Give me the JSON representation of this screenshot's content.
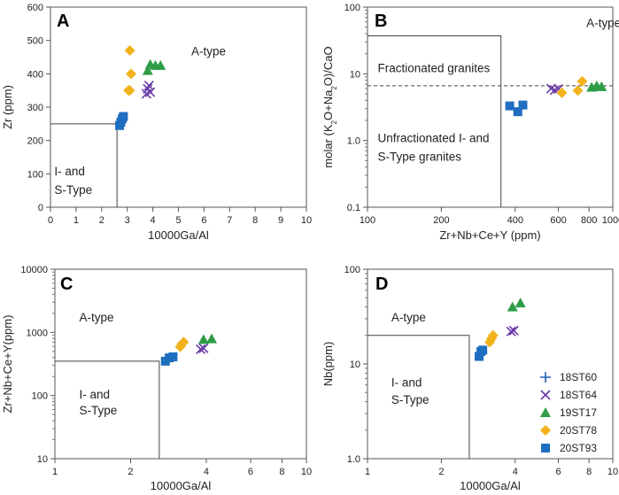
{
  "series_styles": [
    {
      "name": "18ST60",
      "marker": "plus",
      "color": "#1f5fb0"
    },
    {
      "name": "18ST64",
      "marker": "x",
      "color": "#6a3aa6"
    },
    {
      "name": "19ST17",
      "marker": "triangle",
      "color": "#2e9d46"
    },
    {
      "name": "20ST78",
      "marker": "diamond",
      "color": "#f2b21c"
    },
    {
      "name": "20ST93",
      "marker": "square",
      "color": "#1f6ec0"
    }
  ],
  "chart_data": [
    {
      "type": "scatter",
      "panel": "A",
      "xlabel": "10000Ga/Al",
      "ylabel": "Zr (ppm)",
      "xscale": "linear",
      "yscale": "linear",
      "xlim": [
        0,
        10
      ],
      "ylim": [
        0,
        600
      ],
      "xticks": [
        0,
        1,
        2,
        3,
        4,
        5,
        6,
        7,
        8,
        9,
        10
      ],
      "xtick_labels": [
        "0",
        "1",
        "2",
        "3",
        "4",
        "5",
        "6",
        "7",
        "8",
        "9",
        "10"
      ],
      "yticks": [
        0,
        100,
        200,
        300,
        400,
        500,
        600
      ],
      "ytick_labels": [
        "0",
        "100",
        "200",
        "300",
        "400",
        "500",
        "600"
      ],
      "boundary": [
        [
          0,
          250
        ],
        [
          2.6,
          250
        ],
        [
          2.6,
          0
        ]
      ],
      "annotations": [
        {
          "text": "A-type",
          "x": 5.5,
          "y": 455
        },
        {
          "text": "I- and",
          "x": 0.15,
          "y": 95
        },
        {
          "text": "S-Type",
          "x": 0.15,
          "y": 40
        }
      ],
      "series": [
        {
          "name": "20ST93",
          "points": [
            [
              2.7,
              245
            ],
            [
              2.75,
              255
            ],
            [
              2.8,
              265
            ],
            [
              2.85,
              272
            ]
          ]
        },
        {
          "name": "20ST78",
          "points": [
            [
              3.1,
              350
            ],
            [
              3.15,
              400
            ],
            [
              3.1,
              470
            ],
            [
              3.05,
              350
            ]
          ]
        },
        {
          "name": "18ST64",
          "points": [
            [
              3.75,
              340
            ],
            [
              3.8,
              355
            ],
            [
              3.85,
              365
            ],
            [
              3.9,
              345
            ]
          ]
        },
        {
          "name": "19ST17",
          "points": [
            [
              3.8,
              410
            ],
            [
              3.9,
              428
            ],
            [
              4.1,
              425
            ],
            [
              4.3,
              425
            ]
          ]
        }
      ]
    },
    {
      "type": "scatter",
      "panel": "B",
      "xlabel": "Zr+Nb+Ce+Y (ppm)",
      "ylabel": "molar (K2O+Na2O)/CaO",
      "ylabel_parts": [
        "molar (K",
        "2",
        "O+Na",
        "2",
        "O)/CaO"
      ],
      "xscale": "log",
      "yscale": "log",
      "xlim": [
        100,
        1000
      ],
      "ylim": [
        0.1,
        100
      ],
      "xticks": [
        100,
        200,
        400,
        600,
        800,
        1000
      ],
      "xtick_labels": [
        "100",
        "200",
        "400",
        "600",
        "800",
        "1000"
      ],
      "yticks": [
        0.1,
        1,
        10,
        100
      ],
      "ytick_labels": [
        "0.1",
        "1.0",
        "10",
        "100"
      ],
      "boundary": [
        [
          100,
          37
        ],
        [
          350,
          37
        ],
        [
          350,
          0.1
        ]
      ],
      "dashed_line": [
        [
          100,
          6.6
        ],
        [
          1000,
          6.6
        ]
      ],
      "annotations": [
        {
          "text": "A-type",
          "x": 780,
          "y": 50
        },
        {
          "text": "Fractionated granites",
          "x": 110,
          "y": 10.5
        },
        {
          "text": "Unfractionated I- and",
          "x": 110,
          "y": 0.95
        },
        {
          "text": "S-Type granites",
          "x": 110,
          "y": 0.5
        }
      ],
      "series": [
        {
          "name": "20ST93",
          "points": [
            [
              380,
              3.3
            ],
            [
              410,
              2.7
            ],
            [
              430,
              3.4
            ]
          ]
        },
        {
          "name": "18ST64",
          "points": [
            [
              560,
              6.0
            ],
            [
              580,
              5.7
            ],
            [
              600,
              5.9
            ]
          ]
        },
        {
          "name": "20ST78",
          "points": [
            [
              620,
              5.2
            ],
            [
              720,
              5.6
            ],
            [
              750,
              7.7
            ]
          ]
        },
        {
          "name": "19ST17",
          "points": [
            [
              820,
              6.3
            ],
            [
              860,
              6.6
            ],
            [
              900,
              6.4
            ]
          ]
        }
      ]
    },
    {
      "type": "scatter",
      "panel": "C",
      "xlabel": "10000Ga/Al",
      "ylabel": "Zr+Nb+Ce+Y(ppm)",
      "xscale": "log",
      "yscale": "log",
      "xlim": [
        1,
        10
      ],
      "ylim": [
        10,
        10000
      ],
      "xticks": [
        1,
        2,
        4,
        6,
        8,
        10
      ],
      "xtick_labels": [
        "1",
        "2",
        "4",
        "6",
        "8",
        "10"
      ],
      "yticks": [
        10,
        100,
        1000,
        10000
      ],
      "ytick_labels": [
        "10",
        "100",
        "1000",
        "10000"
      ],
      "boundary": [
        [
          1,
          350
        ],
        [
          2.6,
          350
        ],
        [
          2.6,
          10
        ]
      ],
      "annotations": [
        {
          "text": "A-type",
          "x": 1.25,
          "y": 1500
        },
        {
          "text": "I- and",
          "x": 1.25,
          "y": 90
        },
        {
          "text": "S-Type",
          "x": 1.25,
          "y": 50
        }
      ],
      "series": [
        {
          "name": "20ST93",
          "points": [
            [
              2.75,
              350
            ],
            [
              2.85,
              395
            ],
            [
              2.95,
              410
            ]
          ]
        },
        {
          "name": "20ST78",
          "points": [
            [
              3.15,
              590
            ],
            [
              3.2,
              660
            ],
            [
              3.25,
              700
            ]
          ]
        },
        {
          "name": "18ST64",
          "points": [
            [
              3.8,
              540
            ],
            [
              3.9,
              560
            ]
          ]
        },
        {
          "name": "19ST17",
          "points": [
            [
              3.9,
              770
            ],
            [
              4.2,
              790
            ]
          ]
        }
      ]
    },
    {
      "type": "scatter",
      "panel": "D",
      "xlabel": "10000Ga/Al",
      "ylabel": "Nb(ppm)",
      "xscale": "log",
      "yscale": "log",
      "xlim": [
        1,
        10
      ],
      "ylim": [
        1,
        100
      ],
      "xticks": [
        1,
        2,
        4,
        6,
        8,
        10
      ],
      "xtick_labels": [
        "1",
        "2",
        "4",
        "6",
        "8",
        "10"
      ],
      "yticks": [
        1,
        10,
        100
      ],
      "ytick_labels": [
        "1.0",
        "10",
        "100"
      ],
      "boundary": [
        [
          1,
          20
        ],
        [
          2.6,
          20
        ],
        [
          2.6,
          1
        ]
      ],
      "annotations": [
        {
          "text": "A-type",
          "x": 1.25,
          "y": 28
        },
        {
          "text": "I- and",
          "x": 1.25,
          "y": 5.8
        },
        {
          "text": "S-Type",
          "x": 1.25,
          "y": 3.8
        }
      ],
      "series": [
        {
          "name": "20ST93",
          "points": [
            [
              2.85,
              12
            ],
            [
              2.9,
              13.5
            ],
            [
              2.95,
              14
            ]
          ]
        },
        {
          "name": "20ST78",
          "points": [
            [
              3.15,
              17
            ],
            [
              3.2,
              18.5
            ],
            [
              3.25,
              20
            ]
          ]
        },
        {
          "name": "18ST64",
          "points": [
            [
              3.85,
              22
            ],
            [
              3.95,
              22.5
            ]
          ]
        },
        {
          "name": "19ST17",
          "points": [
            [
              3.9,
              40
            ],
            [
              4.2,
              44
            ]
          ]
        }
      ],
      "legend": {
        "position": "right",
        "entries": [
          "18ST60",
          "18ST64",
          "19ST17",
          "20ST78",
          "20ST93"
        ]
      }
    }
  ]
}
